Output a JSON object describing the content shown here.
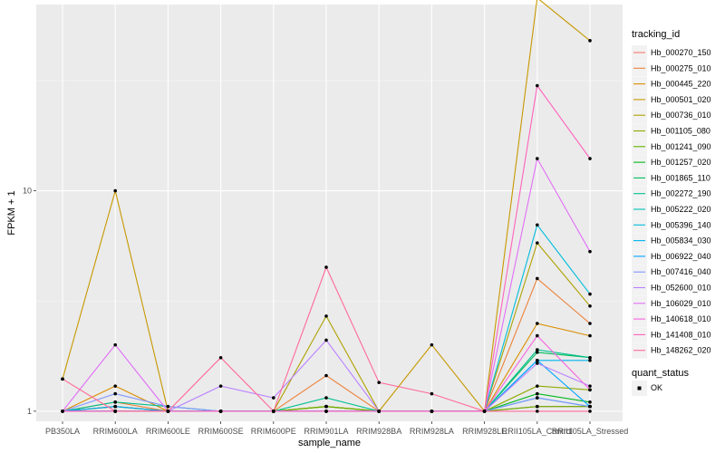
{
  "chart_data": {
    "type": "line",
    "xlabel": "sample_name",
    "ylabel": "FPKM + 1",
    "y_scale": "log10",
    "y_ticks": [
      1,
      10
    ],
    "ylim": [
      0.9,
      70
    ],
    "grid": true,
    "legend_placement": "right",
    "legend_title": "tracking_id",
    "legend2_title": "quant_status",
    "legend2_label": "OK",
    "categories": [
      "PB350LA",
      "RRIM600LA",
      "RRIM600LE",
      "RRIM600SE",
      "RRIM600PE",
      "RRIM901LA",
      "RRIM928BA",
      "RRIM928LA",
      "RRIM928LE",
      "RRII105LA_Control",
      "RRII105LA_Stressed"
    ],
    "series": [
      {
        "name": "Hb_000270_150",
        "color": "#F8766D",
        "values": [
          1.0,
          1.05,
          1.0,
          1.0,
          1.0,
          1.05,
          1.0,
          1.0,
          1.0,
          1.05,
          1.05
        ]
      },
      {
        "name": "Hb_000275_010",
        "color": "#EC8239",
        "values": [
          1.0,
          1.1,
          1.0,
          1.0,
          1.0,
          1.45,
          1.0,
          1.0,
          1.0,
          4.0,
          2.5
        ]
      },
      {
        "name": "Hb_000445_220",
        "color": "#DB8E00",
        "values": [
          1.0,
          1.3,
          1.0,
          1.0,
          1.0,
          1.05,
          1.0,
          1.0,
          1.0,
          2.5,
          2.2
        ]
      },
      {
        "name": "Hb_000501_020",
        "color": "#C79800",
        "values": [
          1.4,
          10.0,
          1.0,
          1.0,
          1.0,
          1.05,
          1.0,
          2.0,
          1.0,
          75.0,
          48.0
        ]
      },
      {
        "name": "Hb_000736_010",
        "color": "#AEA200",
        "values": [
          1.0,
          1.0,
          1.0,
          1.0,
          1.0,
          2.7,
          1.0,
          1.0,
          1.0,
          5.8,
          3.0
        ]
      },
      {
        "name": "Hb_001105_080",
        "color": "#8FAA00",
        "values": [
          1.0,
          1.05,
          1.0,
          1.0,
          1.0,
          1.05,
          1.0,
          1.0,
          1.0,
          1.3,
          1.25
        ]
      },
      {
        "name": "Hb_001241_090",
        "color": "#64B200",
        "values": [
          1.0,
          1.05,
          1.0,
          1.0,
          1.0,
          1.05,
          1.0,
          1.0,
          1.0,
          1.05,
          1.05
        ]
      },
      {
        "name": "Hb_001257_020",
        "color": "#00B81B",
        "values": [
          1.0,
          1.0,
          1.0,
          1.0,
          1.0,
          1.0,
          1.0,
          1.0,
          1.0,
          1.2,
          1.1
        ]
      },
      {
        "name": "Hb_001865_110",
        "color": "#00BD5C",
        "values": [
          1.0,
          1.0,
          1.0,
          1.0,
          1.0,
          1.0,
          1.0,
          1.0,
          1.0,
          1.85,
          1.75
        ]
      },
      {
        "name": "Hb_002272_190",
        "color": "#00C08E",
        "values": [
          1.0,
          1.1,
          1.05,
          1.0,
          1.0,
          1.15,
          1.0,
          1.0,
          1.0,
          1.9,
          1.75
        ]
      },
      {
        "name": "Hb_005222_020",
        "color": "#00C1B7",
        "values": [
          1.0,
          1.0,
          1.0,
          1.0,
          1.0,
          1.0,
          1.0,
          1.0,
          1.0,
          1.15,
          1.05
        ]
      },
      {
        "name": "Hb_005396_140",
        "color": "#00BDDC",
        "values": [
          1.0,
          1.0,
          1.0,
          1.0,
          1.0,
          1.0,
          1.0,
          1.0,
          1.0,
          7.0,
          3.4
        ]
      },
      {
        "name": "Hb_005834_030",
        "color": "#00B4EF",
        "values": [
          1.0,
          1.0,
          1.0,
          1.0,
          1.0,
          1.0,
          1.0,
          1.0,
          1.0,
          1.7,
          1.7
        ]
      },
      {
        "name": "Hb_006922_040",
        "color": "#00A5FF",
        "values": [
          1.0,
          1.05,
          1.0,
          1.0,
          1.0,
          1.0,
          1.0,
          1.0,
          1.0,
          1.7,
          1.05
        ]
      },
      {
        "name": "Hb_007416_040",
        "color": "#7F96FF",
        "values": [
          1.0,
          1.2,
          1.05,
          1.0,
          1.0,
          1.0,
          1.0,
          1.0,
          1.0,
          1.15,
          1.05
        ]
      },
      {
        "name": "Hb_052600_010",
        "color": "#BB81FF",
        "values": [
          1.0,
          1.0,
          1.0,
          1.3,
          1.15,
          2.1,
          1.0,
          1.0,
          1.0,
          1.65,
          1.3
        ]
      },
      {
        "name": "Hb_106029_010",
        "color": "#E26EF7",
        "values": [
          1.0,
          2.0,
          1.0,
          1.0,
          1.0,
          1.0,
          1.0,
          1.0,
          1.0,
          14.0,
          5.3
        ]
      },
      {
        "name": "Hb_140618_010",
        "color": "#F863DF",
        "values": [
          1.0,
          1.0,
          1.0,
          1.0,
          1.0,
          1.0,
          1.0,
          1.0,
          1.0,
          2.2,
          1.25
        ]
      },
      {
        "name": "Hb_141408_010",
        "color": "#FF62BC",
        "values": [
          1.0,
          1.0,
          1.0,
          1.0,
          1.0,
          1.0,
          1.0,
          1.0,
          1.0,
          30.0,
          14.0
        ]
      },
      {
        "name": "Hb_148262_020",
        "color": "#FF6A98",
        "values": [
          1.4,
          1.0,
          1.0,
          1.75,
          1.0,
          4.5,
          1.35,
          1.2,
          1.0,
          1.0,
          1.0
        ]
      }
    ]
  }
}
